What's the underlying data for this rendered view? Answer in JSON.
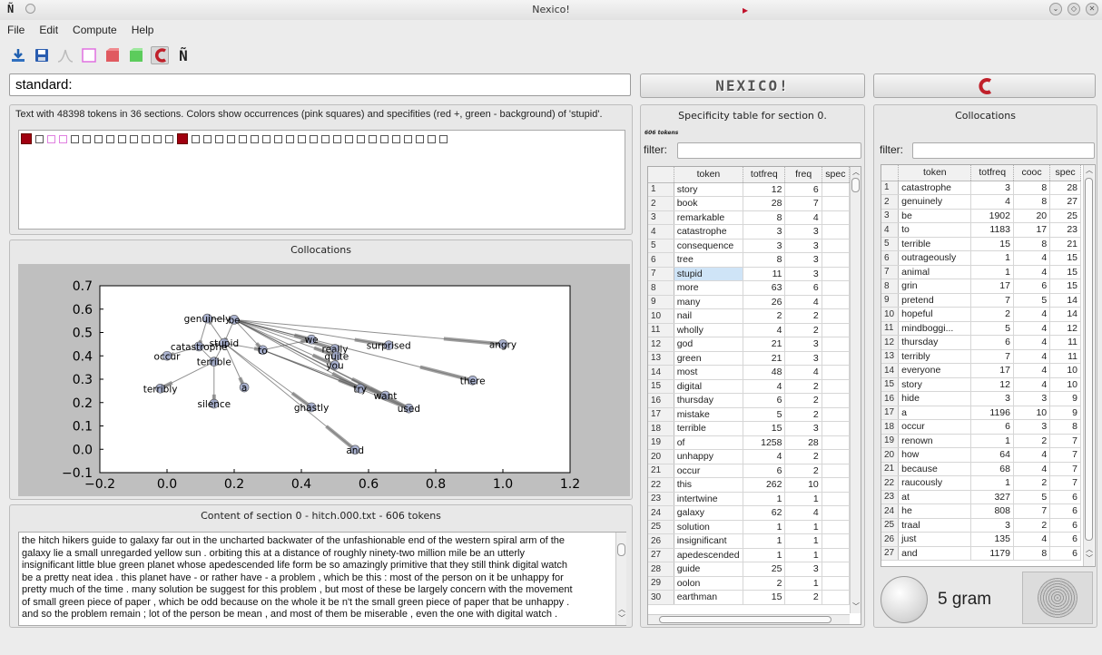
{
  "window": {
    "title": "Nexico!"
  },
  "menu": [
    "File",
    "Edit",
    "Compute",
    "Help"
  ],
  "toolbar_icons": [
    "import-icon",
    "save-icon",
    "distribution-icon",
    "empty-square-icon",
    "red-cube-icon",
    "green-cube-icon",
    "magnet-icon",
    "nexico-logo-icon"
  ],
  "query": {
    "value": "standard:"
  },
  "header_buttons": {
    "logo_text": "NEXICO!",
    "magnet_icon": "magnet-icon"
  },
  "text_panel": {
    "summary": "Text with 48398 tokens in 36 sections. Colors show occurrences (pink squares) and specifities (red +, green - background) of 'stupid'.",
    "squares": [
      "red",
      "plain",
      "pink",
      "pink",
      "plain",
      "plain",
      "plain",
      "plain",
      "plain",
      "plain",
      "plain",
      "plain",
      "plain",
      "red",
      "plain",
      "plain",
      "plain",
      "plain",
      "plain",
      "plain",
      "plain",
      "plain",
      "plain",
      "plain",
      "plain",
      "plain",
      "plain",
      "plain",
      "plain",
      "plain",
      "plain",
      "plain",
      "plain",
      "plain",
      "plain",
      "plain"
    ]
  },
  "collocation_graph": {
    "title": "Collocations",
    "x_ticks": [
      "−0.2",
      "0.0",
      "0.2",
      "0.4",
      "0.6",
      "0.8",
      "1.0",
      "1.2"
    ],
    "y_ticks": [
      "0.7",
      "0.6",
      "0.5",
      "0.4",
      "0.3",
      "0.2",
      "0.1",
      "0.0",
      "−0.1"
    ],
    "nodes": [
      {
        "label": "genuinely",
        "x": 0.12,
        "y": 0.56
      },
      {
        "label": "be",
        "x": 0.2,
        "y": 0.555
      },
      {
        "label": "stupid",
        "x": 0.17,
        "y": 0.455
      },
      {
        "label": "catastrophe",
        "x": 0.095,
        "y": 0.44
      },
      {
        "label": "occur",
        "x": 0.0,
        "y": 0.4
      },
      {
        "label": "terrible",
        "x": 0.14,
        "y": 0.375
      },
      {
        "label": "terribly",
        "x": -0.02,
        "y": 0.26
      },
      {
        "label": "silence",
        "x": 0.14,
        "y": 0.195
      },
      {
        "label": "a",
        "x": 0.23,
        "y": 0.265
      },
      {
        "label": "to",
        "x": 0.285,
        "y": 0.425
      },
      {
        "label": "we",
        "x": 0.43,
        "y": 0.47
      },
      {
        "label": "really",
        "x": 0.5,
        "y": 0.43
      },
      {
        "label": "quite",
        "x": 0.505,
        "y": 0.4
      },
      {
        "label": "you",
        "x": 0.5,
        "y": 0.36
      },
      {
        "label": "surprised",
        "x": 0.66,
        "y": 0.445
      },
      {
        "label": "angry",
        "x": 1.0,
        "y": 0.45
      },
      {
        "label": "there",
        "x": 0.91,
        "y": 0.295
      },
      {
        "label": "try",
        "x": 0.575,
        "y": 0.26
      },
      {
        "label": "want",
        "x": 0.65,
        "y": 0.23
      },
      {
        "label": "used",
        "x": 0.72,
        "y": 0.175
      },
      {
        "label": "ghastly",
        "x": 0.43,
        "y": 0.18
      },
      {
        "label": "and",
        "x": 0.56,
        "y": -0.002
      }
    ]
  },
  "content_panel": {
    "title": "Content of section 0 - hitch.000.txt - 606 tokens",
    "lines": [
      "the hitch hikers guide to galaxy far out in the uncharted backwater of the unfashionable end of the western spiral arm of the",
      "galaxy lie a small unregarded yellow sun . orbiting this at a distance of roughly ninety-two million mile be an utterly",
      "insignificant little blue green planet whose apedescended life form be so amazingly primitive that they still think digital watch",
      "be a pretty neat idea . this planet have - or rather have - a problem , which be this : most of the person on it be unhappy for",
      "pretty much of the time . many solution be suggest for this problem , but most of these be largely concern with the movement",
      "of small green piece of paper , which be odd because on the whole it be n't the small green piece of paper that be unhappy .",
      "and so the problem remain ; lot of the person be mean , and most of them be miserable , even the one with digital watch ."
    ]
  },
  "spec_table": {
    "title": "Specificity table for section 0.",
    "subtitle": "606 tokens",
    "filter_label": "filter:",
    "columns": [
      "token",
      "totfreq",
      "freq",
      "spec"
    ],
    "rows": [
      [
        "story",
        "12",
        "6"
      ],
      [
        "book",
        "28",
        "7"
      ],
      [
        "remarkable",
        "8",
        "4"
      ],
      [
        "catastrophe",
        "3",
        "3"
      ],
      [
        "consequence",
        "3",
        "3"
      ],
      [
        "tree",
        "8",
        "3"
      ],
      [
        "stupid",
        "11",
        "3"
      ],
      [
        "more",
        "63",
        "6"
      ],
      [
        "many",
        "26",
        "4"
      ],
      [
        "nail",
        "2",
        "2"
      ],
      [
        "wholly",
        "4",
        "2"
      ],
      [
        "god",
        "21",
        "3"
      ],
      [
        "green",
        "21",
        "3"
      ],
      [
        "most",
        "48",
        "4"
      ],
      [
        "digital",
        "4",
        "2"
      ],
      [
        "thursday",
        "6",
        "2"
      ],
      [
        "mistake",
        "5",
        "2"
      ],
      [
        "terrible",
        "15",
        "3"
      ],
      [
        "of",
        "1258",
        "28"
      ],
      [
        "unhappy",
        "4",
        "2"
      ],
      [
        "occur",
        "6",
        "2"
      ],
      [
        "this",
        "262",
        "10"
      ],
      [
        "intertwine",
        "1",
        "1"
      ],
      [
        "galaxy",
        "62",
        "4"
      ],
      [
        "solution",
        "1",
        "1"
      ],
      [
        "insignificant",
        "1",
        "1"
      ],
      [
        "apedescended",
        "1",
        "1"
      ],
      [
        "guide",
        "25",
        "3"
      ],
      [
        "oolon",
        "2",
        "1"
      ],
      [
        "earthman",
        "15",
        "2"
      ]
    ],
    "selected_row": 7
  },
  "coll_table": {
    "title": "Collocations",
    "filter_label": "filter:",
    "columns": [
      "token",
      "totfreq",
      "cooc",
      "spec"
    ],
    "rows": [
      [
        "catastrophe",
        "3",
        "8",
        "28"
      ],
      [
        "genuinely",
        "4",
        "8",
        "27"
      ],
      [
        "be",
        "1902",
        "20",
        "25"
      ],
      [
        "to",
        "1183",
        "17",
        "23"
      ],
      [
        "terrible",
        "15",
        "8",
        "21"
      ],
      [
        "outrageously",
        "1",
        "4",
        "15"
      ],
      [
        "animal",
        "1",
        "4",
        "15"
      ],
      [
        "grin",
        "17",
        "6",
        "15"
      ],
      [
        "pretend",
        "7",
        "5",
        "14"
      ],
      [
        "hopeful",
        "2",
        "4",
        "14"
      ],
      [
        "mindboggi...",
        "5",
        "4",
        "12"
      ],
      [
        "thursday",
        "6",
        "4",
        "11"
      ],
      [
        "terribly",
        "7",
        "4",
        "11"
      ],
      [
        "everyone",
        "17",
        "4",
        "10"
      ],
      [
        "story",
        "12",
        "4",
        "10"
      ],
      [
        "hide",
        "3",
        "3",
        "9"
      ],
      [
        "a",
        "1196",
        "10",
        "9"
      ],
      [
        "occur",
        "6",
        "3",
        "8"
      ],
      [
        "renown",
        "1",
        "2",
        "7"
      ],
      [
        "how",
        "64",
        "4",
        "7"
      ],
      [
        "because",
        "68",
        "4",
        "7"
      ],
      [
        "raucously",
        "1",
        "2",
        "7"
      ],
      [
        "at",
        "327",
        "5",
        "6"
      ],
      [
        "he",
        "808",
        "7",
        "6"
      ],
      [
        "traal",
        "3",
        "2",
        "6"
      ],
      [
        "just",
        "135",
        "4",
        "6"
      ],
      [
        "and",
        "1179",
        "8",
        "6"
      ]
    ]
  },
  "gram": {
    "label": "5 gram"
  }
}
